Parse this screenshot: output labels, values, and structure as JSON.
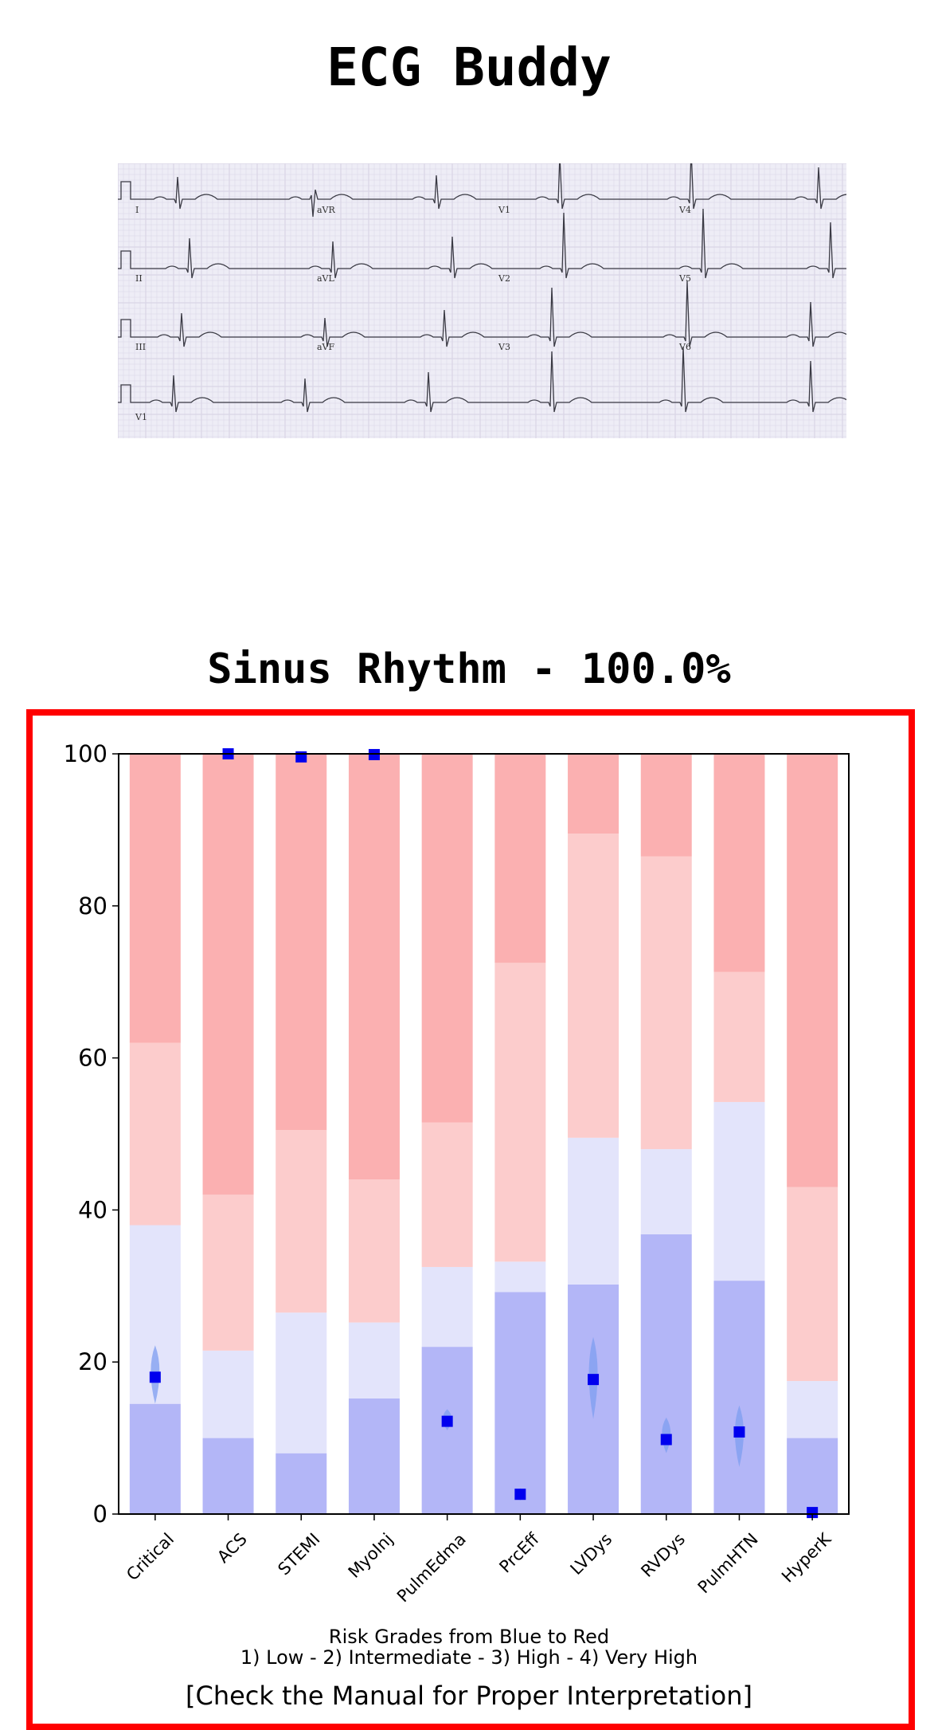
{
  "app": {
    "title": "ECG Buddy"
  },
  "ecg": {
    "lead_labels": [
      "I",
      "aVR",
      "V1",
      "V4",
      "II",
      "aVL",
      "V2",
      "V5",
      "III",
      "aVF",
      "V3",
      "V6",
      "V1"
    ],
    "grid_color": "#d9d5e6",
    "trace_color": "#3a3a44"
  },
  "result": {
    "rhythm_title": "Sinus Rhythm - 100.0%"
  },
  "legend": {
    "line1": "Risk Grades from Blue to Red",
    "line2": "1) Low - 2) Intermediate - 3) High - 4) Very High"
  },
  "footer": {
    "note": "[Check the Manual for Proper Interpretation]"
  },
  "chart_data": {
    "type": "bar",
    "stacked": true,
    "categories": [
      "Critical",
      "ACS",
      "STEMI",
      "MyoInj",
      "PulmEdma",
      "PrcEff",
      "LVDys",
      "RVDys",
      "PulmHTN",
      "HyperK"
    ],
    "grade_boundaries": [
      [
        14.5,
        38,
        62
      ],
      [
        10,
        21.5,
        42
      ],
      [
        8,
        26.5,
        50.5
      ],
      [
        15.2,
        25.2,
        44
      ],
      [
        22,
        32.5,
        51.5
      ],
      [
        29.2,
        33.2,
        72.5
      ],
      [
        30.2,
        49.5,
        89.5
      ],
      [
        36.8,
        48,
        86.5
      ],
      [
        30.7,
        54.2,
        71.3
      ],
      [
        10,
        17.5,
        43
      ]
    ],
    "grade_colors": [
      "#b3b6f7",
      "#e3e4fb",
      "#fccccc",
      "#fbb0b1"
    ],
    "estimates": [
      18,
      100,
      99.6,
      99.9,
      12.2,
      2.6,
      17.7,
      9.8,
      10.8,
      0.2
    ],
    "estimate_ranges": [
      [
        14.5,
        22.2
      ],
      null,
      null,
      null,
      [
        11,
        13.8
      ],
      [
        1.8,
        3.4
      ],
      [
        12.5,
        23.3
      ],
      [
        8,
        12.7
      ],
      [
        6.2,
        14.3
      ],
      null
    ],
    "ylim": [
      0,
      100
    ],
    "yticks": [
      0,
      20,
      40,
      60,
      80,
      100
    ],
    "point_color": "#0000ee",
    "range_color": "#7d9ef0"
  }
}
